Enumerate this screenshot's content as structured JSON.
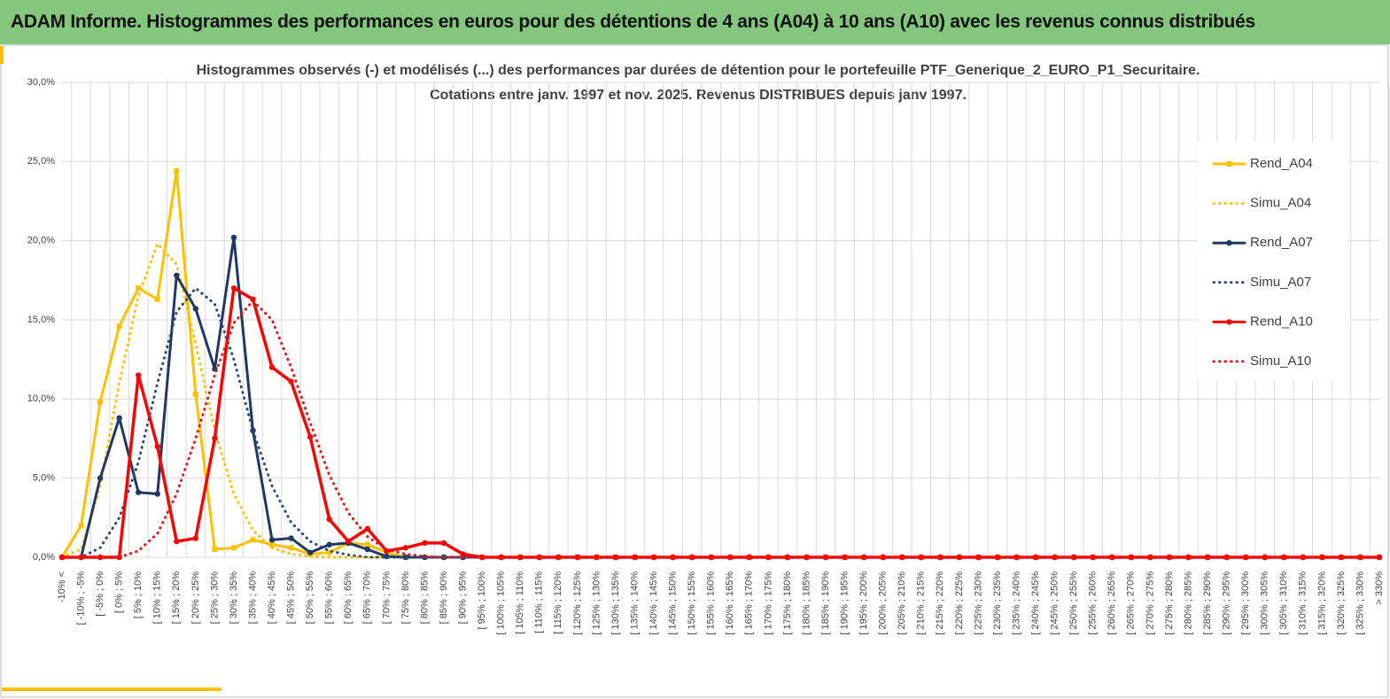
{
  "header": {
    "title": "ADAM Informe. Histogrammes des performances en euros pour des détentions de 4 ans (A04) à 10 ans (A10) avec les revenus connus distribués"
  },
  "chart_data": {
    "type": "line",
    "title": [
      "Histogrammes observés (-) et modélisés (...) des performances par durées de détention pour le portefeuille PTF_Generique_2_EURO_P1_Securitaire.",
      "Cotations entre janv. 1997 et nov. 2025. Revenus DISTRIBUES depuis janv 1997."
    ],
    "categories": [
      "-10% <",
      "[ -10% ; -5%",
      "[ -5% ; 0%",
      "[ 0% ; 5%",
      "[ 5% ; 10%",
      "[ 10% ; 15%",
      "[ 15% ; 20%",
      "[ 20% ; 25%",
      "[ 25% ; 30%",
      "[ 30% ; 35%",
      "[ 35% ; 40%",
      "[ 40% ; 45%",
      "[ 45% ; 50%",
      "[ 50% ; 55%",
      "[ 55% ; 60%",
      "[ 60% ; 65%",
      "[ 65% ; 70%",
      "[ 70% ; 75%",
      "[ 75% ; 80%",
      "[ 80% ; 85%",
      "[ 85% ; 90%",
      "[ 90% ; 95%",
      "[ 95% ; 100%",
      "[ 100% ; 105%",
      "[ 105% ; 110%",
      "[ 110% ; 115%",
      "[ 115% ; 120%",
      "[ 120% ; 125%",
      "[ 125% ; 130%",
      "[ 130% ; 135%",
      "[ 135% ; 140%",
      "[ 140% ; 145%",
      "[ 145% ; 150%",
      "[ 150% ; 155%",
      "[ 155% ; 160%",
      "[ 160% ; 165%",
      "[ 165% ; 170%",
      "[ 170% ; 175%",
      "[ 175% ; 180%",
      "[ 180% ; 185%",
      "[ 185% ; 190%",
      "[ 190% ; 195%",
      "[ 195% ; 200%",
      "[ 200% ; 205%",
      "[ 205% ; 210%",
      "[ 210% ; 215%",
      "[ 215% ; 220%",
      "[ 220% ; 225%",
      "[ 225% ; 230%",
      "[ 230% ; 235%",
      "[ 235% ; 240%",
      "[ 240% ; 245%",
      "[ 245% ; 250%",
      "[ 250% ; 255%",
      "[ 255% ; 260%",
      "[ 260% ; 265%",
      "[ 265% ; 270%",
      "[ 270% ; 275%",
      "[ 275% ; 280%",
      "[ 280% ; 285%",
      "[ 285% ; 290%",
      "[ 290% ; 295%",
      "[ 295% ; 300%",
      "[ 300% ; 305%",
      "[ 305% ; 310%",
      "[ 310% ; 315%",
      "[ 315% ; 320%",
      "[ 320% ; 325%",
      "[ 325% ; 330%",
      "> 330%"
    ],
    "series": [
      {
        "name": "Rend_A04",
        "color": "#ffc000",
        "style": "solid",
        "marker": "square",
        "values": [
          0,
          2.0,
          9.8,
          14.6,
          17.0,
          16.3,
          24.4,
          10.3,
          0.5,
          0.6,
          1.1,
          0.8,
          0.6,
          0.2,
          0.3,
          0.9,
          0.8,
          0.3,
          0,
          0,
          0,
          0,
          0,
          0,
          0,
          0,
          0,
          0,
          0,
          0,
          0,
          0,
          0,
          0,
          0,
          0,
          0,
          0,
          0,
          0,
          0,
          0,
          0,
          0,
          0,
          0,
          0,
          0,
          0,
          0,
          0,
          0,
          0,
          0,
          0,
          0,
          0,
          0,
          0,
          0,
          0,
          0,
          0,
          0,
          0,
          0,
          0,
          0,
          0,
          0
        ]
      },
      {
        "name": "Simu_A04",
        "color": "#ffc000",
        "style": "dotted",
        "marker": null,
        "values": [
          0,
          0.5,
          4.5,
          11.0,
          16.5,
          19.8,
          18.5,
          13.5,
          8.0,
          4.0,
          1.7,
          0.6,
          0.2,
          0.05,
          0,
          0,
          0,
          0,
          0,
          0,
          0,
          0,
          0,
          0,
          0,
          0,
          0,
          0,
          0,
          0,
          0,
          0,
          0,
          0,
          0,
          0,
          0,
          0,
          0,
          0,
          0,
          0,
          0,
          0,
          0,
          0,
          0,
          0,
          0,
          0,
          0,
          0,
          0,
          0,
          0,
          0,
          0,
          0,
          0,
          0,
          0,
          0,
          0,
          0,
          0,
          0,
          0,
          0,
          0,
          0
        ]
      },
      {
        "name": "Rend_A07",
        "color": "#1f3864",
        "style": "solid",
        "marker": "circle",
        "values": [
          0,
          0,
          5.0,
          8.8,
          4.1,
          4.0,
          17.8,
          15.7,
          11.9,
          20.2,
          8.0,
          1.1,
          1.2,
          0.3,
          0.8,
          0.9,
          0.5,
          0.05,
          0,
          0,
          0,
          0,
          0,
          0,
          0,
          0,
          0,
          0,
          0,
          0,
          0,
          0,
          0,
          0,
          0,
          0,
          0,
          0,
          0,
          0,
          0,
          0,
          0,
          0,
          0,
          0,
          0,
          0,
          0,
          0,
          0,
          0,
          0,
          0,
          0,
          0,
          0,
          0,
          0,
          0,
          0,
          0,
          0,
          0,
          0,
          0,
          0,
          0,
          0,
          0
        ]
      },
      {
        "name": "Simu_A07",
        "color": "#2a4a7c",
        "style": "dotted",
        "marker": null,
        "values": [
          0,
          0,
          0.6,
          2.5,
          6.0,
          11.0,
          15.5,
          17.0,
          16.0,
          12.5,
          8.0,
          4.5,
          2.2,
          1.0,
          0.4,
          0.15,
          0,
          0,
          0,
          0,
          0,
          0,
          0,
          0,
          0,
          0,
          0,
          0,
          0,
          0,
          0,
          0,
          0,
          0,
          0,
          0,
          0,
          0,
          0,
          0,
          0,
          0,
          0,
          0,
          0,
          0,
          0,
          0,
          0,
          0,
          0,
          0,
          0,
          0,
          0,
          0,
          0,
          0,
          0,
          0,
          0,
          0,
          0,
          0,
          0,
          0,
          0,
          0,
          0,
          0
        ]
      },
      {
        "name": "Rend_A10",
        "color": "#ff0000",
        "style": "solid",
        "marker": "circle",
        "values": [
          0,
          0,
          0,
          0,
          11.5,
          7.0,
          1.0,
          1.2,
          7.5,
          17.0,
          16.3,
          12.0,
          11.1,
          7.6,
          2.4,
          1.0,
          1.8,
          0.4,
          0.6,
          0.9,
          0.9,
          0.2,
          0,
          0,
          0,
          0,
          0,
          0,
          0,
          0,
          0,
          0,
          0,
          0,
          0,
          0,
          0,
          0,
          0,
          0,
          0,
          0,
          0,
          0,
          0,
          0,
          0,
          0,
          0,
          0,
          0,
          0,
          0,
          0,
          0,
          0,
          0,
          0,
          0,
          0,
          0,
          0,
          0,
          0,
          0,
          0,
          0,
          0,
          0,
          0
        ]
      },
      {
        "name": "Simu_A10",
        "color": "#e8161b",
        "style": "dotted",
        "marker": null,
        "values": [
          0,
          0,
          0,
          0,
          0.4,
          1.5,
          4.0,
          7.5,
          11.5,
          14.8,
          16.2,
          15.0,
          12.0,
          8.5,
          5.2,
          2.8,
          1.3,
          0.5,
          0.2,
          0.05,
          0,
          0,
          0,
          0,
          0,
          0,
          0,
          0,
          0,
          0,
          0,
          0,
          0,
          0,
          0,
          0,
          0,
          0,
          0,
          0,
          0,
          0,
          0,
          0,
          0,
          0,
          0,
          0,
          0,
          0,
          0,
          0,
          0,
          0,
          0,
          0,
          0,
          0,
          0,
          0,
          0,
          0,
          0,
          0,
          0,
          0,
          0,
          0,
          0,
          0
        ]
      }
    ],
    "ylim": [
      0,
      30
    ],
    "yticks": [
      {
        "value": 0,
        "label": "0,0%"
      },
      {
        "value": 5,
        "label": "5,0%"
      },
      {
        "value": 10,
        "label": "10,0%"
      },
      {
        "value": 15,
        "label": "15,0%"
      },
      {
        "value": 20,
        "label": "20,0%"
      },
      {
        "value": 25,
        "label": "25,0%"
      },
      {
        "value": 30,
        "label": "30,0%"
      }
    ],
    "grid": true,
    "legend": "right"
  }
}
